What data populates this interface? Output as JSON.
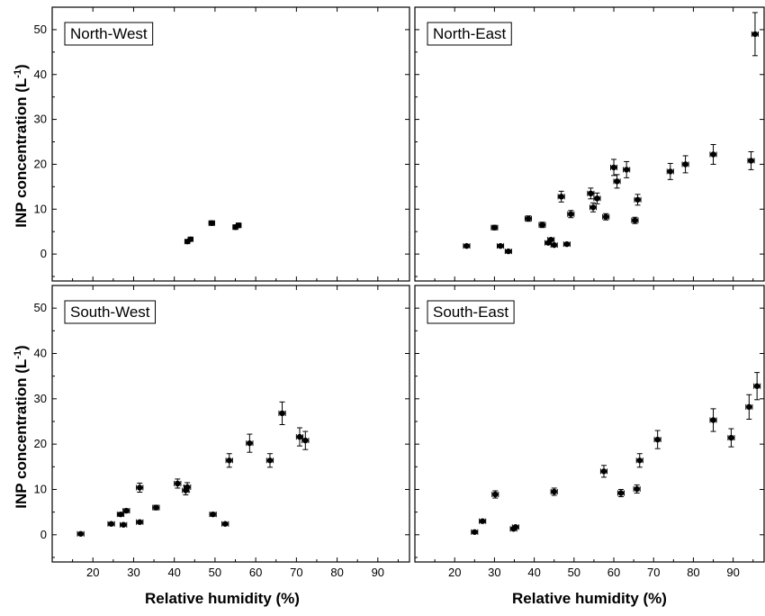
{
  "figure": {
    "ylabel_main": "INP concentration  (L",
    "ylabel_sup": "-1",
    "ylabel_close": ")",
    "xlabel": "Relative humidity (%)"
  },
  "chart_data": [
    {
      "type": "scatter",
      "panel": "top-left",
      "title": "North-West",
      "xlabel": "",
      "ylabel": "INP concentration (L-1)",
      "xlim": [
        10,
        98
      ],
      "ylim": [
        -6,
        55
      ],
      "xticks": [
        20,
        30,
        40,
        50,
        60,
        70,
        80,
        90
      ],
      "yticks": [
        0,
        10,
        20,
        30,
        40,
        50
      ],
      "show_xticklabels": false,
      "show_yticklabels": true,
      "points": [
        {
          "x": 43.2,
          "y": 2.8,
          "xerr": 0.6,
          "yerr": 0.4
        },
        {
          "x": 44.0,
          "y": 3.3,
          "xerr": 0.6,
          "yerr": 0.4
        },
        {
          "x": 49.2,
          "y": 6.9,
          "xerr": 0.7,
          "yerr": 0.5
        },
        {
          "x": 55.0,
          "y": 6.0,
          "xerr": 0.6,
          "yerr": 0.5
        },
        {
          "x": 55.8,
          "y": 6.4,
          "xerr": 0.6,
          "yerr": 0.5
        }
      ]
    },
    {
      "type": "scatter",
      "panel": "top-right",
      "title": "North-East",
      "xlabel": "",
      "ylabel": "",
      "xlim": [
        10,
        98
      ],
      "ylim": [
        -6,
        55
      ],
      "xticks": [
        20,
        30,
        40,
        50,
        60,
        70,
        80,
        90
      ],
      "yticks": [
        0,
        10,
        20,
        30,
        40,
        50
      ],
      "show_xticklabels": false,
      "show_yticklabels": false,
      "points": [
        {
          "x": 23.0,
          "y": 1.8,
          "xerr": 0.8,
          "yerr": 0.3
        },
        {
          "x": 30.0,
          "y": 5.9,
          "xerr": 0.8,
          "yerr": 0.5
        },
        {
          "x": 31.5,
          "y": 1.8,
          "xerr": 0.8,
          "yerr": 0.3
        },
        {
          "x": 33.5,
          "y": 0.6,
          "xerr": 0.8,
          "yerr": 0.3
        },
        {
          "x": 38.5,
          "y": 7.9,
          "xerr": 0.8,
          "yerr": 0.6
        },
        {
          "x": 42.0,
          "y": 6.5,
          "xerr": 0.8,
          "yerr": 0.6
        },
        {
          "x": 43.5,
          "y": 2.5,
          "xerr": 0.8,
          "yerr": 0.3
        },
        {
          "x": 44.2,
          "y": 3.2,
          "xerr": 0.8,
          "yerr": 0.3
        },
        {
          "x": 45.0,
          "y": 2.0,
          "xerr": 0.8,
          "yerr": 0.3
        },
        {
          "x": 46.8,
          "y": 12.8,
          "xerr": 0.8,
          "yerr": 1.2
        },
        {
          "x": 48.2,
          "y": 2.2,
          "xerr": 0.8,
          "yerr": 0.3
        },
        {
          "x": 49.2,
          "y": 8.9,
          "xerr": 0.8,
          "yerr": 0.8
        },
        {
          "x": 54.2,
          "y": 13.5,
          "xerr": 0.8,
          "yerr": 1.2
        },
        {
          "x": 54.8,
          "y": 10.4,
          "xerr": 0.8,
          "yerr": 1.0
        },
        {
          "x": 55.8,
          "y": 12.4,
          "xerr": 0.8,
          "yerr": 1.2
        },
        {
          "x": 58.0,
          "y": 8.3,
          "xerr": 0.8,
          "yerr": 0.7
        },
        {
          "x": 60.0,
          "y": 19.3,
          "xerr": 0.8,
          "yerr": 1.8
        },
        {
          "x": 60.8,
          "y": 16.2,
          "xerr": 0.8,
          "yerr": 1.5
        },
        {
          "x": 63.2,
          "y": 18.8,
          "xerr": 0.8,
          "yerr": 1.8
        },
        {
          "x": 65.3,
          "y": 7.5,
          "xerr": 0.8,
          "yerr": 0.7
        },
        {
          "x": 66.0,
          "y": 12.1,
          "xerr": 0.8,
          "yerr": 1.2
        },
        {
          "x": 74.2,
          "y": 18.4,
          "xerr": 0.8,
          "yerr": 1.8
        },
        {
          "x": 78.0,
          "y": 20.0,
          "xerr": 0.8,
          "yerr": 1.9
        },
        {
          "x": 85.0,
          "y": 22.2,
          "xerr": 0.8,
          "yerr": 2.2
        },
        {
          "x": 94.5,
          "y": 20.8,
          "xerr": 0.8,
          "yerr": 2.0
        },
        {
          "x": 95.5,
          "y": 49.0,
          "xerr": 0.8,
          "yerr": 4.8
        }
      ]
    },
    {
      "type": "scatter",
      "panel": "bottom-left",
      "title": "South-West",
      "xlabel": "Relative humidity (%)",
      "ylabel": "INP concentration (L-1)",
      "xlim": [
        10,
        98
      ],
      "ylim": [
        -6,
        55
      ],
      "xticks": [
        20,
        30,
        40,
        50,
        60,
        70,
        80,
        90
      ],
      "yticks": [
        0,
        10,
        20,
        30,
        40,
        50
      ],
      "show_xticklabels": true,
      "show_yticklabels": true,
      "points": [
        {
          "x": 17.0,
          "y": 0.2,
          "xerr": 0.8,
          "yerr": 0.3
        },
        {
          "x": 24.5,
          "y": 2.4,
          "xerr": 0.8,
          "yerr": 0.3
        },
        {
          "x": 26.8,
          "y": 4.5,
          "xerr": 0.8,
          "yerr": 0.4
        },
        {
          "x": 27.5,
          "y": 2.2,
          "xerr": 0.8,
          "yerr": 0.3
        },
        {
          "x": 28.2,
          "y": 5.3,
          "xerr": 0.8,
          "yerr": 0.4
        },
        {
          "x": 31.5,
          "y": 10.4,
          "xerr": 0.8,
          "yerr": 1.0
        },
        {
          "x": 31.5,
          "y": 2.8,
          "xerr": 0.8,
          "yerr": 0.3
        },
        {
          "x": 35.5,
          "y": 6.0,
          "xerr": 0.8,
          "yerr": 0.5
        },
        {
          "x": 40.8,
          "y": 11.3,
          "xerr": 0.8,
          "yerr": 1.0
        },
        {
          "x": 42.8,
          "y": 9.8,
          "xerr": 0.8,
          "yerr": 1.0
        },
        {
          "x": 43.2,
          "y": 10.5,
          "xerr": 0.8,
          "yerr": 1.0
        },
        {
          "x": 49.5,
          "y": 4.5,
          "xerr": 0.8,
          "yerr": 0.4
        },
        {
          "x": 52.5,
          "y": 2.4,
          "xerr": 0.8,
          "yerr": 0.3
        },
        {
          "x": 53.5,
          "y": 16.4,
          "xerr": 0.8,
          "yerr": 1.5
        },
        {
          "x": 58.5,
          "y": 20.2,
          "xerr": 0.8,
          "yerr": 2.0
        },
        {
          "x": 63.5,
          "y": 16.4,
          "xerr": 0.8,
          "yerr": 1.5
        },
        {
          "x": 66.5,
          "y": 26.8,
          "xerr": 0.8,
          "yerr": 2.5
        },
        {
          "x": 70.8,
          "y": 21.6,
          "xerr": 0.8,
          "yerr": 2.0
        },
        {
          "x": 72.2,
          "y": 20.8,
          "xerr": 0.8,
          "yerr": 2.0
        }
      ]
    },
    {
      "type": "scatter",
      "panel": "bottom-right",
      "title": "South-East",
      "xlabel": "Relative humidity (%)",
      "ylabel": "",
      "xlim": [
        10,
        98
      ],
      "ylim": [
        -6,
        55
      ],
      "xticks": [
        20,
        30,
        40,
        50,
        60,
        70,
        80,
        90
      ],
      "yticks": [
        0,
        10,
        20,
        30,
        40,
        50
      ],
      "show_xticklabels": true,
      "show_yticklabels": false,
      "points": [
        {
          "x": 25.0,
          "y": 0.6,
          "xerr": 0.8,
          "yerr": 0.3
        },
        {
          "x": 27.0,
          "y": 3.0,
          "xerr": 0.8,
          "yerr": 0.3
        },
        {
          "x": 30.2,
          "y": 8.9,
          "xerr": 0.8,
          "yerr": 0.8
        },
        {
          "x": 34.8,
          "y": 1.3,
          "xerr": 0.8,
          "yerr": 0.3
        },
        {
          "x": 35.3,
          "y": 1.7,
          "xerr": 0.8,
          "yerr": 0.3
        },
        {
          "x": 45.0,
          "y": 9.5,
          "xerr": 0.8,
          "yerr": 0.8
        },
        {
          "x": 57.5,
          "y": 14.0,
          "xerr": 0.8,
          "yerr": 1.3
        },
        {
          "x": 61.8,
          "y": 9.2,
          "xerr": 0.8,
          "yerr": 0.8
        },
        {
          "x": 65.8,
          "y": 10.1,
          "xerr": 0.8,
          "yerr": 0.9
        },
        {
          "x": 66.5,
          "y": 16.4,
          "xerr": 0.8,
          "yerr": 1.5
        },
        {
          "x": 71.0,
          "y": 21.0,
          "xerr": 0.8,
          "yerr": 2.0
        },
        {
          "x": 85.0,
          "y": 25.3,
          "xerr": 0.8,
          "yerr": 2.5
        },
        {
          "x": 89.5,
          "y": 21.4,
          "xerr": 0.8,
          "yerr": 2.0
        },
        {
          "x": 94.0,
          "y": 28.2,
          "xerr": 0.8,
          "yerr": 2.7
        },
        {
          "x": 96.0,
          "y": 32.8,
          "xerr": 0.8,
          "yerr": 3.0
        }
      ]
    }
  ]
}
